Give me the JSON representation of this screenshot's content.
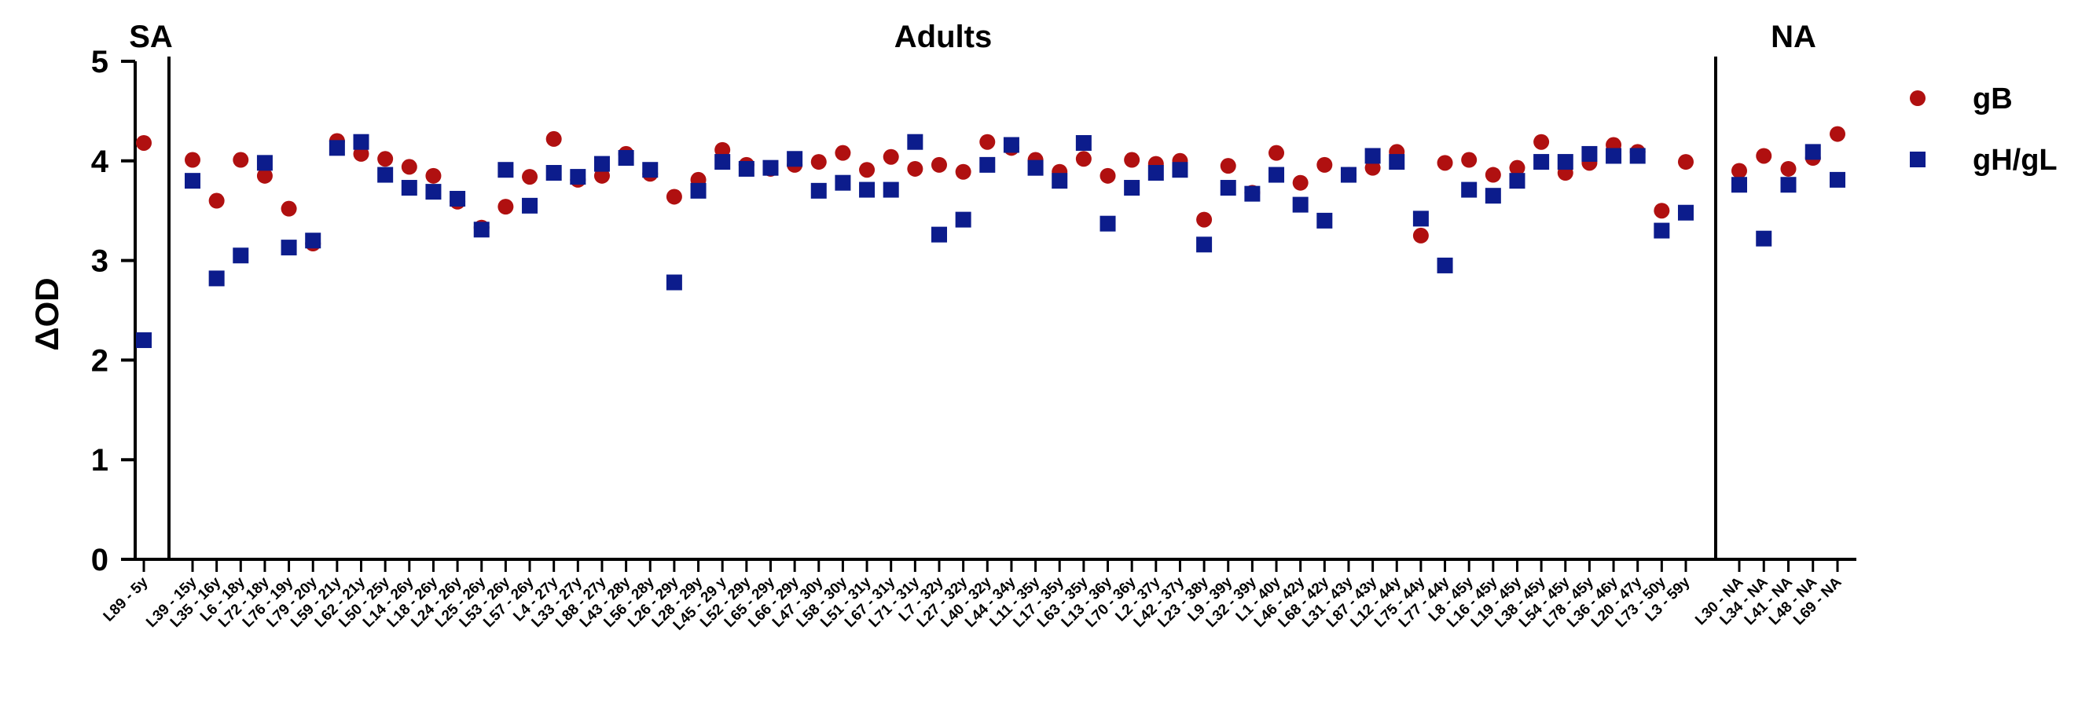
{
  "chart_data": {
    "type": "scatter",
    "ylabel": "ΔOD",
    "ylim": [
      0,
      5
    ],
    "yticks": [
      "0",
      "1",
      "2",
      "3",
      "4",
      "5"
    ],
    "baseline": 0,
    "groups": [
      {
        "label": "SA",
        "count": 1
      },
      {
        "label": "Adults",
        "count": 63
      },
      {
        "label": "NA",
        "count": 5
      }
    ],
    "categories": [
      "L89 - 5y",
      "L39 - 15y",
      "L35 - 16y",
      "L6 - 18y",
      "L72 - 18y",
      "L76 - 19y",
      "L79 - 20y",
      "L59 - 21y",
      "L62 - 21y",
      "L50 - 25y",
      "L14 - 26y",
      "L18 - 26y",
      "L24 - 26y",
      "L25 - 26y",
      "L53 - 26y",
      "L57 - 26y",
      "L4 - 27y",
      "L33 - 27y",
      "L88 - 27y",
      "L43 - 28y",
      "L56 - 28y",
      "L26 - 29y",
      "L28 - 29y",
      "L45 - 29 y",
      "L52 - 29y",
      "L65 - 29y",
      "L66 - 29y",
      "L47 - 30y",
      "L58 - 30y",
      "L51 - 31y",
      "L67 - 31y",
      "L71 - 31y",
      "L7 - 32y",
      "L27 - 32y",
      "L40 - 32y",
      "L44 - 34y",
      "L11 - 35y",
      "L17 - 35y",
      "L63 - 35y",
      "L13 - 36y",
      "L70 - 36y",
      "L2 - 37y",
      "L42 - 37y",
      "L23 - 38y",
      "L9 - 39y",
      "L32 - 39y",
      "L1 - 40y",
      "L46 - 42y",
      "L68 - 42y",
      "L31 - 43y",
      "L87 - 43y",
      "L12 - 44y",
      "L75 - 44y",
      "L77 - 44y",
      "L8 - 45y",
      "L16 - 45y",
      "L19 - 45y",
      "L38 - 45y",
      "L54 - 45y",
      "L78 - 45y",
      "L36 - 46y",
      "L20 - 47y",
      "L73 - 50y",
      "L3 - 59y",
      "L30 - NA",
      "L34 - NA",
      "L41 - NA",
      "L48 - NA",
      "L69 - NA"
    ],
    "series": [
      {
        "name": "gB",
        "color": "#b01010",
        "marker": "circle",
        "values": [
          4.18,
          4.01,
          3.6,
          4.01,
          3.85,
          3.52,
          3.17,
          4.2,
          4.07,
          4.02,
          3.94,
          3.85,
          3.59,
          3.33,
          3.54,
          3.84,
          4.22,
          3.81,
          3.85,
          4.07,
          3.87,
          3.64,
          3.81,
          4.11,
          3.96,
          3.92,
          3.96,
          3.99,
          4.08,
          3.91,
          4.04,
          3.92,
          3.96,
          3.89,
          4.19,
          4.13,
          4.01,
          3.89,
          4.02,
          3.85,
          4.01,
          3.97,
          4.0,
          3.41,
          3.95,
          3.68,
          4.08,
          3.78,
          3.96,
          3.86,
          3.93,
          4.09,
          3.25,
          3.98,
          4.01,
          3.86,
          3.93,
          4.19,
          3.88,
          3.98,
          4.16,
          4.09,
          3.5,
          3.99,
          3.9,
          4.05,
          3.92,
          4.03,
          4.27
        ]
      },
      {
        "name": "gH/gL",
        "color": "#0c1c8c",
        "marker": "square",
        "values": [
          2.2,
          3.8,
          2.82,
          3.05,
          3.98,
          3.13,
          3.2,
          4.13,
          4.19,
          3.86,
          3.73,
          3.69,
          3.62,
          3.31,
          3.91,
          3.55,
          3.88,
          3.84,
          3.97,
          4.03,
          3.91,
          2.78,
          3.7,
          3.99,
          3.92,
          3.93,
          4.02,
          3.7,
          3.78,
          3.71,
          3.71,
          4.19,
          3.26,
          3.41,
          3.96,
          4.16,
          3.93,
          3.8,
          4.18,
          3.37,
          3.73,
          3.88,
          3.91,
          3.16,
          3.73,
          3.67,
          3.86,
          3.56,
          3.4,
          3.86,
          4.05,
          3.99,
          3.42,
          2.95,
          3.71,
          3.65,
          3.8,
          3.99,
          3.99,
          4.07,
          4.05,
          4.05,
          3.3,
          3.48,
          3.76,
          3.22,
          3.76,
          4.09,
          3.81
        ]
      }
    ],
    "legend_position": "top-right",
    "grid": false
  }
}
